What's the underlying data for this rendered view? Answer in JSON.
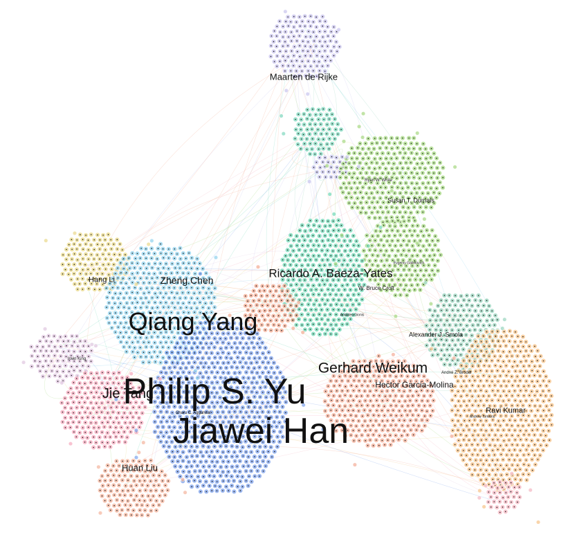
{
  "graph": {
    "clusters": [
      {
        "id": "maarten",
        "color": "#c9c4ee"
      },
      {
        "id": "teal-top",
        "color": "#7fd9bf"
      },
      {
        "id": "lavender-mid",
        "color": "#c7c5ee"
      },
      {
        "id": "green",
        "color": "#a6d982"
      },
      {
        "id": "green-lower",
        "color": "#a6d982"
      },
      {
        "id": "hangli",
        "color": "#e9d98a"
      },
      {
        "id": "cyan",
        "color": "#92d3ee"
      },
      {
        "id": "teal-center",
        "color": "#6fd8b5"
      },
      {
        "id": "salmon-small",
        "color": "#f4ab92"
      },
      {
        "id": "blue",
        "color": "#7ea2ec"
      },
      {
        "id": "irwin",
        "color": "#e0c6e0"
      },
      {
        "id": "pink",
        "color": "#f5a9bd"
      },
      {
        "id": "huan",
        "color": "#f4b49c"
      },
      {
        "id": "salmon-big",
        "color": "#f4ad97"
      },
      {
        "id": "seagreen",
        "color": "#98d4be"
      },
      {
        "id": "orange",
        "color": "#f7c388"
      },
      {
        "id": "pink-bottom",
        "color": "#f4b7c2"
      }
    ],
    "labels": [
      {
        "id": "philip",
        "text": "Philip S. Yu",
        "color": "#111111"
      },
      {
        "id": "jiawei",
        "text": "Jiawei Han",
        "color": "#111111"
      },
      {
        "id": "qiang",
        "text": "Qiang Yang",
        "color": "#111111"
      },
      {
        "id": "jie",
        "text": "Jie Tang",
        "color": "#111111"
      },
      {
        "id": "gerhard",
        "text": "Gerhard Weikum",
        "color": "#111111"
      },
      {
        "id": "ricardo",
        "text": "Ricardo A. Baeza-Yates",
        "color": "#111111"
      },
      {
        "id": "hector",
        "text": "Hector Garcia-Molina",
        "color": "#111111"
      },
      {
        "id": "zheng",
        "text": "Zheng Chen",
        "color": "#111111"
      },
      {
        "id": "maarten",
        "text": "Maarten de Rijke",
        "color": "#111111"
      },
      {
        "id": "huan",
        "text": "Huan Liu",
        "color": "#111111"
      },
      {
        "id": "hangli",
        "text": "Hang Li",
        "color": "#111111"
      },
      {
        "id": "ravi",
        "text": "Ravi Kumar",
        "color": "#111111"
      },
      {
        "id": "susan",
        "text": "Susan T. Dumais",
        "color": "#111111"
      },
      {
        "id": "alexander",
        "text": "Alexander J. Smola",
        "color": "#111111"
      },
      {
        "id": "croft",
        "text": "W. Bruce Croft",
        "color": "#111111"
      },
      {
        "id": "andrei",
        "text": "Andrei Z. Broder",
        "color": "#111111"
      },
      {
        "id": "irwin",
        "text": "Irwin King",
        "color": "#111111"
      },
      {
        "id": "ryen",
        "text": "Ryen W. White",
        "color": "#111111"
      },
      {
        "id": "andrew",
        "text": "Andrew Tomkins",
        "color": "#111111"
      },
      {
        "id": "aggarwal",
        "text": "Charu C. Aggarwal",
        "color": "#111111"
      },
      {
        "id": "aristides",
        "text": "Aristides Gionis",
        "color": "#111111"
      },
      {
        "id": "evgeniy",
        "text": "Evgeniy Gabrilovich",
        "color": "#111111"
      }
    ]
  }
}
